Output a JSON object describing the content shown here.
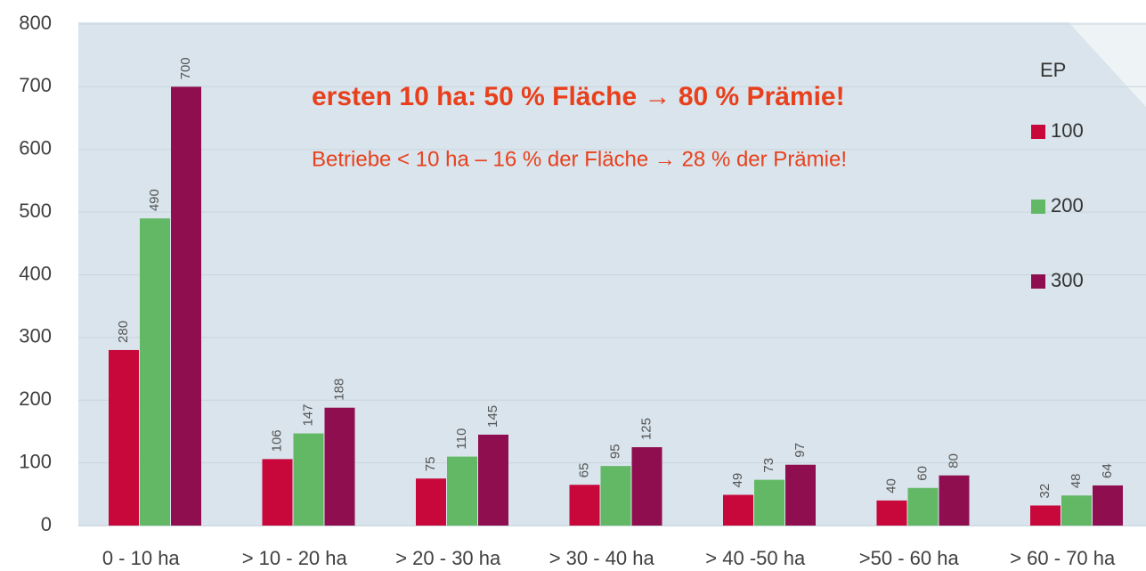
{
  "chart_data": {
    "type": "bar",
    "categories": [
      "0 - 10 ha",
      "> 10 - 20 ha",
      "> 20 - 30 ha",
      "> 30 - 40 ha",
      "> 40 -50 ha",
      ">50 - 60 ha",
      "> 60 - 70 ha"
    ],
    "series": [
      {
        "name": "100",
        "color": "#c8073a",
        "values": [
          280,
          106,
          75,
          65,
          49,
          40,
          32
        ]
      },
      {
        "name": "200",
        "color": "#63b866",
        "values": [
          490,
          147,
          110,
          95,
          73,
          60,
          48
        ]
      },
      {
        "name": "300",
        "color": "#8e0e50",
        "values": [
          700,
          188,
          145,
          125,
          97,
          80,
          64
        ]
      }
    ],
    "legend_title": "EP",
    "annotations": [
      "ersten 10 ha:  50 % Fläche → 80 % Prämie!",
      "Betriebe < 10 ha – 16 % der Fläche → 28 % der Prämie!"
    ],
    "ylim": [
      0,
      800
    ],
    "yticks": [
      0,
      100,
      200,
      300,
      400,
      500,
      600,
      700,
      800
    ],
    "grid": true
  }
}
